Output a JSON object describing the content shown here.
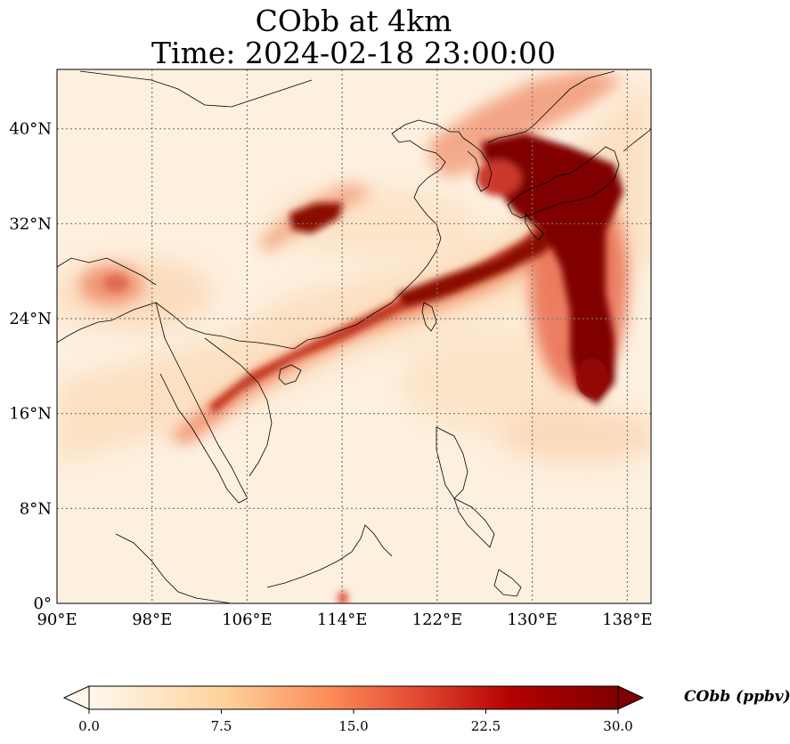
{
  "title": {
    "line1": "CObb at 4km",
    "line2": "Time: 2024-02-18 23:00:00"
  },
  "map": {
    "lon_range": [
      90,
      140
    ],
    "lat_range": [
      0,
      45
    ],
    "lon_ticks": [
      {
        "value": 90,
        "label": "90°E"
      },
      {
        "value": 98,
        "label": "98°E"
      },
      {
        "value": 106,
        "label": "106°E"
      },
      {
        "value": 114,
        "label": "114°E"
      },
      {
        "value": 122,
        "label": "122°E"
      },
      {
        "value": 130,
        "label": "130°E"
      },
      {
        "value": 138,
        "label": "138°E"
      }
    ],
    "lat_ticks": [
      {
        "value": 0,
        "label": "0°"
      },
      {
        "value": 8,
        "label": "8°N"
      },
      {
        "value": 16,
        "label": "16°N"
      },
      {
        "value": 24,
        "label": "24°N"
      },
      {
        "value": 32,
        "label": "32°N"
      },
      {
        "value": 40,
        "label": "40°N"
      }
    ],
    "gridlines": true,
    "colors": {
      "background": "#fdf0df",
      "low": "#fde6c9",
      "mid": "#f1916b",
      "high": "#b31a10",
      "max": "#7f0000",
      "coast": "#000000",
      "grid": "#888888"
    }
  },
  "colorbar": {
    "label": "CObb (ppbv)",
    "min": 0,
    "max": 30,
    "ticks": [
      {
        "value": 0,
        "label": "0.0"
      },
      {
        "value": 7.5,
        "label": "7.5"
      },
      {
        "value": 15,
        "label": "15.0"
      },
      {
        "value": 22.5,
        "label": "22.5"
      },
      {
        "value": 30,
        "label": "30.0"
      }
    ],
    "extend": "both",
    "cmap": "OrRd"
  }
}
